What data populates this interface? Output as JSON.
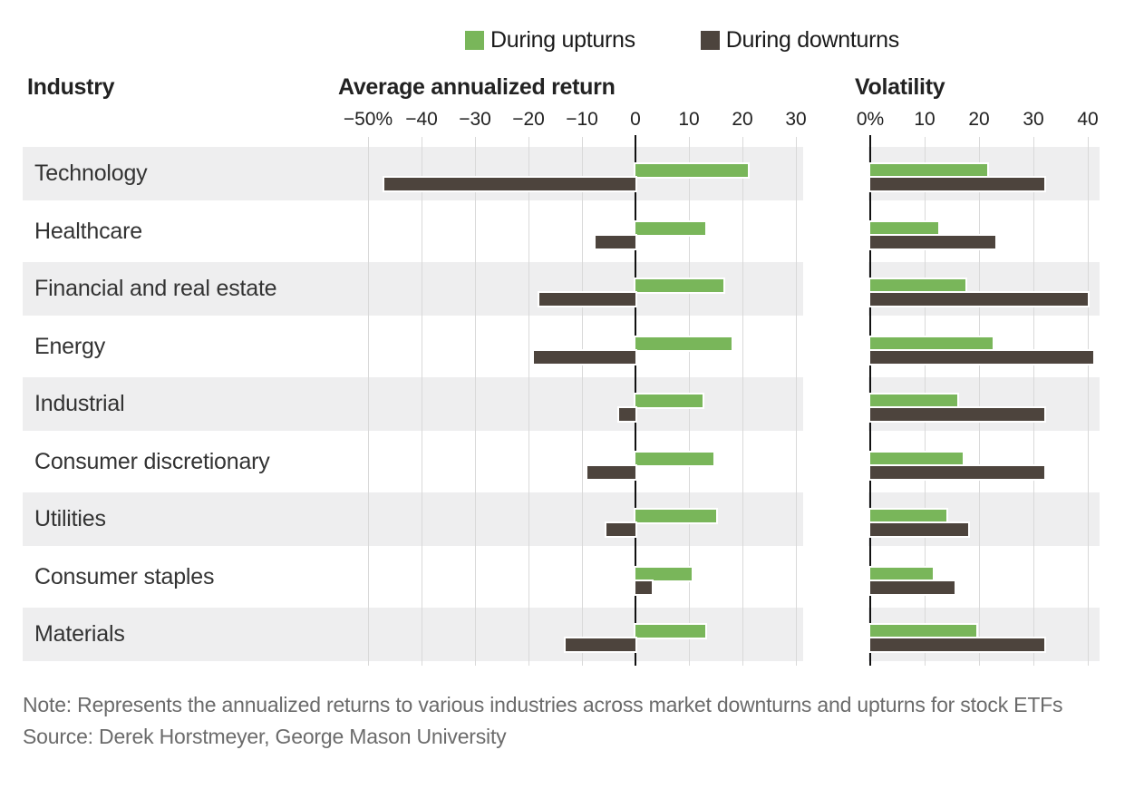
{
  "legend": {
    "items": [
      {
        "label": "During upturns",
        "color": "#79b65a"
      },
      {
        "label": "During downturns",
        "color": "#4d443d"
      }
    ]
  },
  "headers": {
    "industry": "Industry",
    "return_panel": "Average annualized return",
    "volatility_panel": "Volatility"
  },
  "colors": {
    "upturn_green": "#79b65a",
    "downturn_brown": "#4d443d",
    "row_stripe": "#eeeeef",
    "gridline": "#d9d9d9",
    "axis": "#111111",
    "text_dark": "#222222",
    "text_muted": "#6b6b6b"
  },
  "footer": {
    "note": "Note: Represents the annualized returns to various industries across market downturns and upturns for stock ETFs",
    "source": "Source: Derek Horstmeyer, George Mason University"
  },
  "chart_data": [
    {
      "type": "bar",
      "orientation": "horizontal",
      "title": "Average annualized return",
      "unit": "%",
      "categories": [
        "Technology",
        "Healthcare",
        "Financial and real estate",
        "Energy",
        "Industrial",
        "Consumer discretionary",
        "Utilities",
        "Consumer staples",
        "Materials"
      ],
      "series": [
        {
          "name": "During upturns",
          "values": [
            21,
            13,
            16.5,
            18,
            12.5,
            14.5,
            15,
            10.5,
            13
          ]
        },
        {
          "name": "During downturns",
          "values": [
            -47,
            -7.5,
            -18,
            -19,
            -3,
            -9,
            -5.5,
            3,
            -13
          ]
        }
      ],
      "xlim": [
        -52,
        32
      ],
      "tick_labels": [
        "−50%",
        "−40",
        "−30",
        "−20",
        "−10",
        "0",
        "10",
        "20",
        "30"
      ],
      "tick_values": [
        -50,
        -40,
        -30,
        -20,
        -10,
        0,
        10,
        20,
        30
      ],
      "grid": true,
      "legend_position": "top"
    },
    {
      "type": "bar",
      "orientation": "horizontal",
      "title": "Volatility",
      "unit": "%",
      "categories": [
        "Technology",
        "Healthcare",
        "Financial and real estate",
        "Energy",
        "Industrial",
        "Consumer discretionary",
        "Utilities",
        "Consumer staples",
        "Materials"
      ],
      "series": [
        {
          "name": "During upturns",
          "values": [
            21.5,
            12.5,
            17.5,
            22.5,
            16,
            17,
            14,
            11.5,
            19.5
          ]
        },
        {
          "name": "During downturns",
          "values": [
            32,
            23,
            40,
            41,
            32,
            32,
            18,
            15.5,
            32
          ]
        }
      ],
      "xlim": [
        0,
        42
      ],
      "tick_labels": [
        "0%",
        "10",
        "20",
        "30",
        "40"
      ],
      "tick_values": [
        0,
        10,
        20,
        30,
        40
      ],
      "grid": true,
      "legend_position": "top"
    }
  ]
}
